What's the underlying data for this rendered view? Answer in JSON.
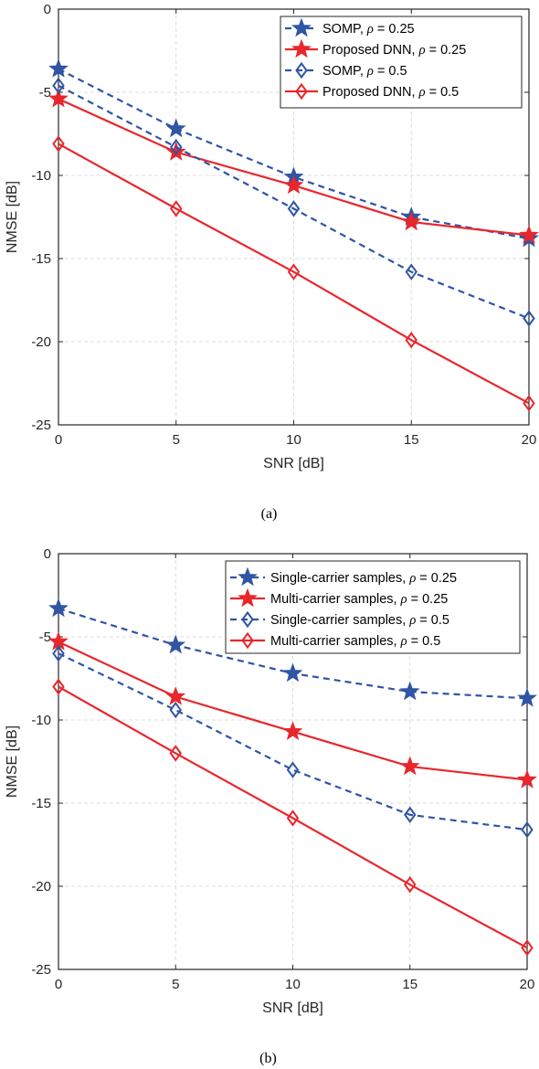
{
  "chart_data": [
    {
      "type": "line",
      "caption": "(a)",
      "xlabel": "SNR [dB]",
      "ylabel": "NMSE [dB]",
      "xlim": [
        0,
        20
      ],
      "ylim": [
        -25,
        0
      ],
      "x_ticks": [
        0,
        5,
        10,
        15,
        20
      ],
      "y_ticks": [
        0,
        -5,
        -10,
        -15,
        -20,
        -25
      ],
      "grid": true,
      "legend_position": "top-right",
      "x": [
        0,
        5,
        10,
        15,
        20
      ],
      "series": [
        {
          "name": "SOMP,",
          "rho": "0.25",
          "color": "#2f55a4",
          "line": "dashed",
          "marker": "star",
          "values": [
            -3.6,
            -7.2,
            -10.1,
            -12.5,
            -13.8
          ]
        },
        {
          "name": "Proposed DNN,",
          "rho": "0.25",
          "color": "#e8262c",
          "line": "solid",
          "marker": "star",
          "values": [
            -5.4,
            -8.6,
            -10.6,
            -12.8,
            -13.6
          ]
        },
        {
          "name": "SOMP,",
          "rho": "0.5",
          "color": "#2f55a4",
          "line": "dashed",
          "marker": "diamond",
          "values": [
            -4.6,
            -8.3,
            -12.0,
            -15.8,
            -18.6
          ]
        },
        {
          "name": "Proposed DNN,",
          "rho": "0.5",
          "color": "#e8262c",
          "line": "solid",
          "marker": "diamond",
          "values": [
            -8.1,
            -12.0,
            -15.8,
            -19.9,
            -23.7
          ]
        }
      ]
    },
    {
      "type": "line",
      "caption": "(b)",
      "xlabel": "SNR [dB]",
      "ylabel": "NMSE [dB]",
      "xlim": [
        0,
        20
      ],
      "ylim": [
        -25,
        0
      ],
      "x_ticks": [
        0,
        5,
        10,
        15,
        20
      ],
      "y_ticks": [
        0,
        -5,
        -10,
        -15,
        -20,
        -25
      ],
      "grid": true,
      "legend_position": "top-right",
      "x": [
        0,
        5,
        10,
        15,
        20
      ],
      "series": [
        {
          "name": "Single-carrier samples,",
          "rho": "0.25",
          "color": "#2f55a4",
          "line": "dashed",
          "marker": "star",
          "values": [
            -3.3,
            -5.5,
            -7.2,
            -8.3,
            -8.7
          ]
        },
        {
          "name": "Multi-carrier samples,",
          "rho": "0.25",
          "color": "#e8262c",
          "line": "solid",
          "marker": "star",
          "values": [
            -5.3,
            -8.6,
            -10.7,
            -12.8,
            -13.6
          ]
        },
        {
          "name": "Single-carrier samples,",
          "rho": "0.5",
          "color": "#2f55a4",
          "line": "dashed",
          "marker": "diamond",
          "values": [
            -6.0,
            -9.4,
            -13.0,
            -15.7,
            -16.6
          ]
        },
        {
          "name": "Multi-carrier samples,",
          "rho": "0.5",
          "color": "#e8262c",
          "line": "solid",
          "marker": "diamond",
          "values": [
            -8.0,
            -12.0,
            -15.9,
            -19.9,
            -23.7
          ]
        }
      ]
    }
  ]
}
